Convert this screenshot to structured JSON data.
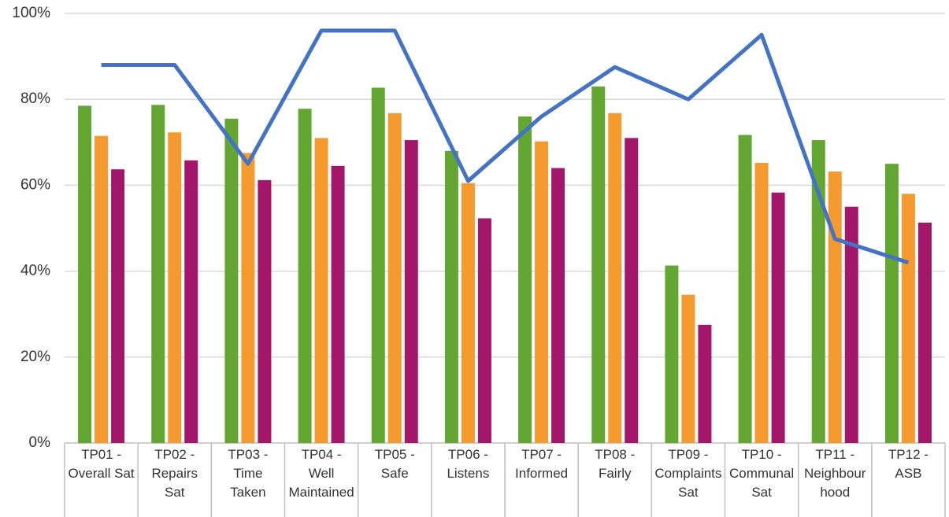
{
  "chart_data": {
    "type": "bar+line",
    "categories": [
      "TP01 - Overall Sat",
      "TP02 - Repairs Sat",
      "TP03 - Time Taken",
      "TP04 - Well Maintained",
      "TP05 - Safe",
      "TP06 - Listens",
      "TP07 - Informed",
      "TP08 - Fairly",
      "TP09 - Complaints Sat",
      "TP10 - Communal Sat",
      "TP11 - Neighbourhood",
      "TP12 - ASB"
    ],
    "series": [
      {
        "type": "bar",
        "color": "#63a632",
        "values": [
          78.5,
          78.7,
          75.5,
          77.8,
          82.7,
          68,
          76,
          83,
          41.3,
          71.7,
          70.5,
          65
        ]
      },
      {
        "type": "bar",
        "color": "#f59a2f",
        "values": [
          71.5,
          72.3,
          67.5,
          71,
          76.8,
          60.5,
          70.2,
          76.8,
          34.5,
          65.2,
          63.2,
          58
        ]
      },
      {
        "type": "bar",
        "color": "#a3176a",
        "values": [
          63.7,
          65.8,
          61.2,
          64.5,
          70.5,
          52.3,
          64,
          71,
          27.5,
          58.3,
          55,
          51.3
        ]
      },
      {
        "type": "line",
        "color": "#4472c4",
        "values": [
          88,
          88,
          65,
          96,
          96,
          61,
          76,
          87.5,
          80,
          95,
          47.5,
          42
        ]
      }
    ],
    "ylim": [
      0,
      100
    ],
    "yticks": [
      {
        "value": 0,
        "label": "0%"
      },
      {
        "value": 20,
        "label": "20%"
      },
      {
        "value": 40,
        "label": "40%"
      },
      {
        "value": 60,
        "label": "60%"
      },
      {
        "value": 80,
        "label": "80%"
      },
      {
        "value": 100,
        "label": "100%"
      }
    ],
    "grid": true
  }
}
